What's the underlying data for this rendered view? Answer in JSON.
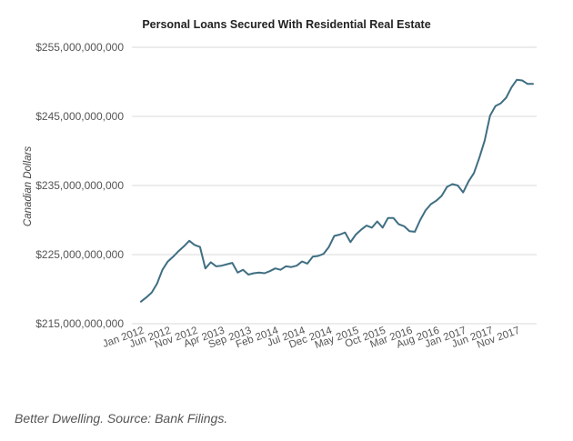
{
  "chart_data": {
    "type": "line",
    "title": "Personal Loans Secured With Residential Real Estate",
    "xlabel": "",
    "ylabel": "Canadian Dollars",
    "ylim": [
      215000000000,
      255000000000
    ],
    "y_ticks": [
      {
        "value": 215000000000,
        "label": "$215,000,000,000"
      },
      {
        "value": 225000000000,
        "label": "$225,000,000,000"
      },
      {
        "value": 235000000000,
        "label": "$235,000,000,000"
      },
      {
        "value": 245000000000,
        "label": "$245,000,000,000"
      },
      {
        "value": 255000000000,
        "label": "$255,000,000,000"
      }
    ],
    "grid": true,
    "legend": "none",
    "line_color": "#3f6e82",
    "x_tick_labels": [
      "Jan 2012",
      "Jun 2012",
      "Nov 2012",
      "Apr 2013",
      "Sep 2013",
      "Feb 2014",
      "Jul 2014",
      "Dec 2014",
      "May 2015",
      "Oct 2015",
      "Mar 2016",
      "Aug 2016",
      "Jan 2017",
      "Jun 2017",
      "Nov 2017"
    ],
    "x": [
      "Jan 2012",
      "Feb 2012",
      "Mar 2012",
      "Apr 2012",
      "May 2012",
      "Jun 2012",
      "Jul 2012",
      "Aug 2012",
      "Sep 2012",
      "Oct 2012",
      "Nov 2012",
      "Dec 2012",
      "Jan 2013",
      "Feb 2013",
      "Mar 2013",
      "Apr 2013",
      "May 2013",
      "Jun 2013",
      "Jul 2013",
      "Aug 2013",
      "Sep 2013",
      "Oct 2013",
      "Nov 2013",
      "Dec 2013",
      "Jan 2014",
      "Feb 2014",
      "Mar 2014",
      "Apr 2014",
      "May 2014",
      "Jun 2014",
      "Jul 2014",
      "Aug 2014",
      "Sep 2014",
      "Oct 2014",
      "Nov 2014",
      "Dec 2014",
      "Jan 2015",
      "Feb 2015",
      "Mar 2015",
      "Apr 2015",
      "May 2015",
      "Jun 2015",
      "Jul 2015",
      "Aug 2015",
      "Sep 2015",
      "Oct 2015",
      "Nov 2015",
      "Dec 2015",
      "Jan 2016",
      "Feb 2016",
      "Mar 2016",
      "Apr 2016",
      "May 2016",
      "Jun 2016",
      "Jul 2016",
      "Aug 2016",
      "Sep 2016",
      "Oct 2016",
      "Nov 2016",
      "Dec 2016",
      "Jan 2017",
      "Feb 2017",
      "Mar 2017",
      "Apr 2017",
      "May 2017",
      "Jun 2017",
      "Jul 2017",
      "Aug 2017",
      "Sep 2017",
      "Oct 2017",
      "Nov 2017",
      "Dec 2017",
      "Jan 2018",
      "Feb 2018"
    ],
    "series": [
      {
        "values": [
          218200000000,
          218800000000,
          219500000000,
          220800000000,
          222800000000,
          224000000000,
          224700000000,
          225500000000,
          226200000000,
          227000000000,
          226400000000,
          226100000000,
          223000000000,
          223900000000,
          223300000000,
          223400000000,
          223600000000,
          223800000000,
          222400000000,
          222800000000,
          222100000000,
          222300000000,
          222400000000,
          222300000000,
          222600000000,
          223000000000,
          222800000000,
          223300000000,
          223200000000,
          223400000000,
          224000000000,
          223700000000,
          224700000000,
          224800000000,
          225100000000,
          226100000000,
          227700000000,
          227900000000,
          228200000000,
          226800000000,
          227900000000,
          228600000000,
          229200000000,
          228900000000,
          229800000000,
          228900000000,
          230300000000,
          230300000000,
          229400000000,
          229100000000,
          228400000000,
          228300000000,
          230000000000,
          231400000000,
          232300000000,
          232800000000,
          233500000000,
          234800000000,
          235200000000,
          235000000000,
          234000000000,
          235600000000,
          236800000000,
          239000000000,
          241500000000,
          245100000000,
          246500000000,
          246900000000,
          247700000000,
          249200000000,
          250300000000,
          250200000000,
          249700000000,
          249700000000
        ]
      }
    ]
  },
  "caption": "Better Dwelling. Source: Bank Filings."
}
